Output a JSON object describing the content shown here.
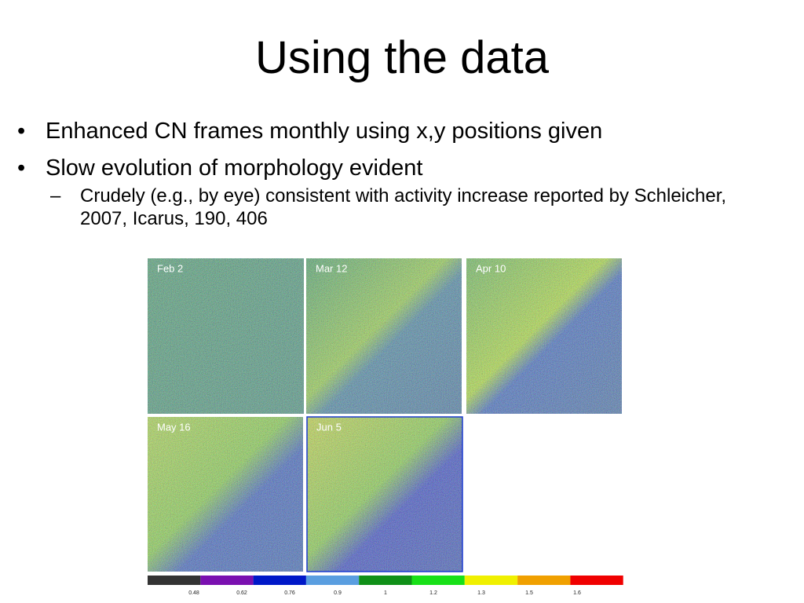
{
  "title": "Using the data",
  "bullets": [
    {
      "text": "Enhanced CN frames monthly using x,y positions given"
    },
    {
      "text": "Slow evolution of morphology evident",
      "sub": [
        "Crudely (e.g., by eye) consistent with activity increase reported by Schleicher, 2007, Icarus, 190, 406"
      ]
    }
  ],
  "panels": [
    "Feb 2",
    "Mar 12",
    "Apr 10",
    "May 16",
    "Jun 5"
  ],
  "colorbar": {
    "labels": [
      "0.48",
      "0.62",
      "0.76",
      "0.9",
      "1",
      "1.2",
      "1.3",
      "1.5",
      "1.6"
    ]
  }
}
